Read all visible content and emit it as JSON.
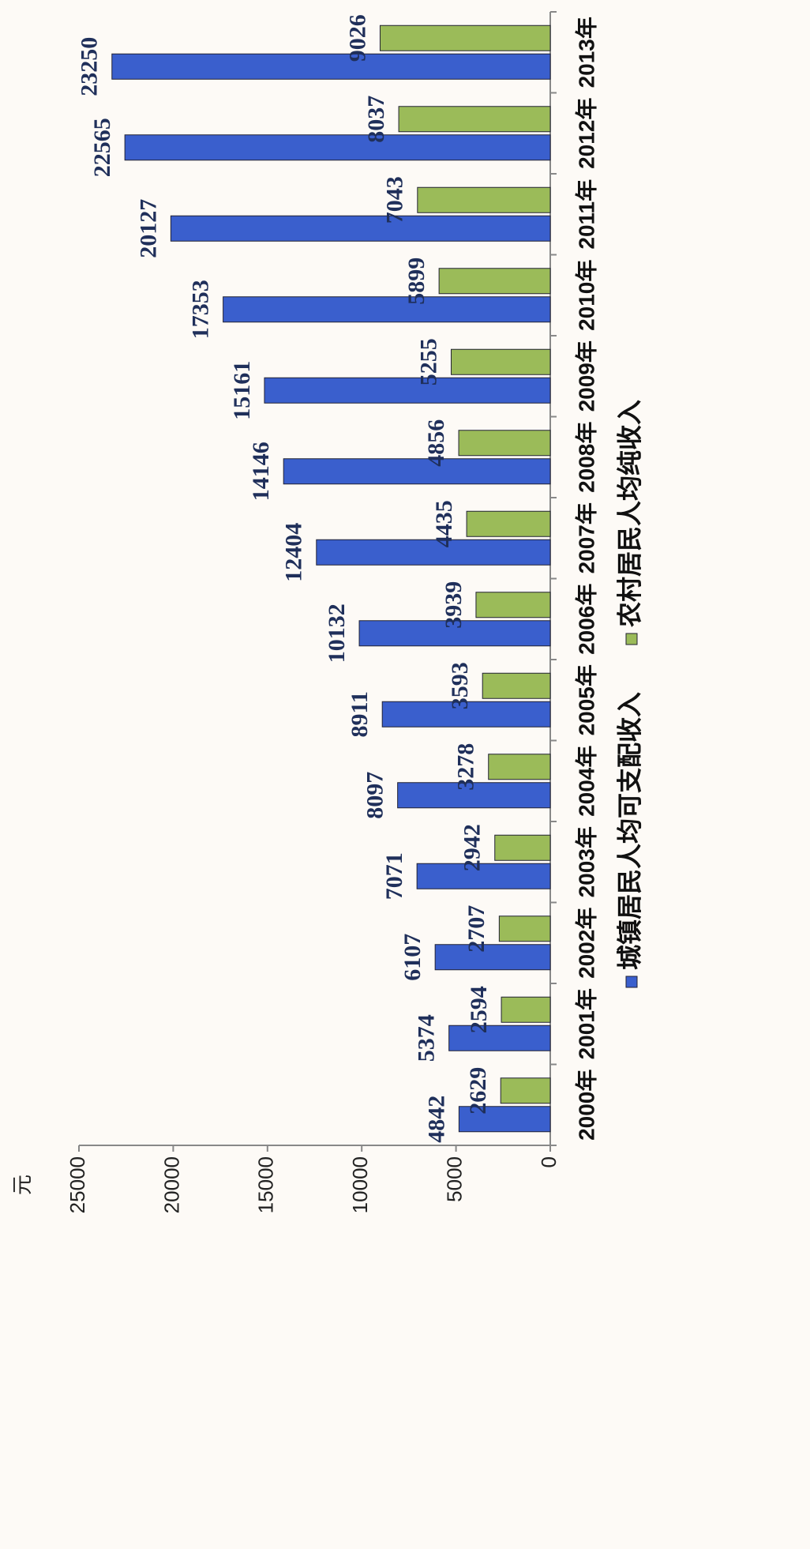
{
  "chart_data": {
    "type": "bar",
    "y_label": "元",
    "categories": [
      "2000年",
      "2001年",
      "2002年",
      "2003年",
      "2004年",
      "2005年",
      "2006年",
      "2007年",
      "2008年",
      "2009年",
      "2010年",
      "2011年",
      "2012年",
      "2013年"
    ],
    "series": [
      {
        "name": "城镇居民人均可支配收入",
        "color": "#3a5fcd",
        "values": [
          4842,
          5374,
          6107,
          7071,
          8097,
          8911,
          10132,
          12404,
          14146,
          15161,
          17353,
          20127,
          22565,
          23250
        ]
      },
      {
        "name": "农村居民人均纯收入",
        "color": "#9bbb59",
        "values": [
          2629,
          2594,
          2707,
          2942,
          3278,
          3593,
          3939,
          4435,
          4856,
          5255,
          5899,
          7043,
          8037,
          9026
        ]
      }
    ],
    "ylim": [
      0,
      25000
    ],
    "yticks": [
      0,
      5000,
      10000,
      15000,
      20000,
      25000
    ],
    "grid": false,
    "legend": "bottom"
  }
}
